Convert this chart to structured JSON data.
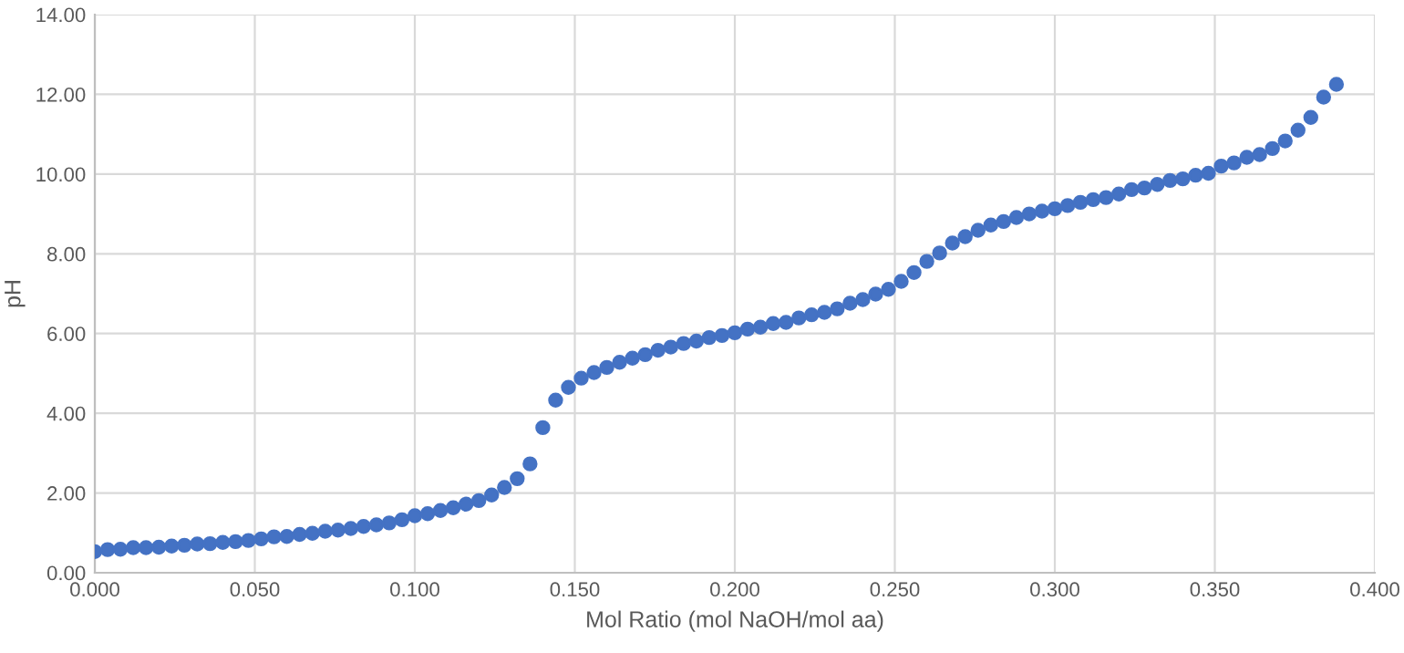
{
  "chart_data": {
    "type": "scatter",
    "xlabel": "Mol Ratio (mol NaOH/mol aa)",
    "ylabel": "pH",
    "x": [
      0,
      0.004,
      0.008,
      0.012,
      0.016,
      0.02,
      0.024,
      0.028,
      0.032,
      0.036,
      0.04,
      0.044,
      0.048,
      0.052,
      0.056,
      0.06,
      0.064,
      0.068,
      0.072,
      0.076,
      0.08,
      0.084,
      0.088,
      0.092,
      0.096,
      0.1,
      0.104,
      0.108,
      0.112,
      0.116,
      0.12,
      0.124,
      0.128,
      0.132,
      0.136,
      0.14,
      0.144,
      0.148,
      0.152,
      0.156,
      0.16,
      0.164,
      0.168,
      0.172,
      0.176,
      0.18,
      0.184,
      0.188,
      0.192,
      0.196,
      0.2,
      0.204,
      0.208,
      0.212,
      0.216,
      0.22,
      0.224,
      0.228,
      0.232,
      0.236,
      0.24,
      0.244,
      0.248,
      0.252,
      0.256,
      0.26,
      0.264,
      0.268,
      0.272,
      0.276,
      0.28,
      0.284,
      0.288,
      0.292,
      0.296,
      0.3,
      0.304,
      0.308,
      0.312,
      0.316,
      0.32,
      0.324,
      0.328,
      0.332,
      0.336,
      0.34,
      0.344,
      0.348,
      0.352,
      0.356,
      0.36,
      0.364,
      0.368,
      0.372,
      0.376,
      0.38,
      0.384,
      0.388
    ],
    "series": [
      {
        "color": "#4472c4",
        "values": [
          0.53,
          0.58,
          0.59,
          0.63,
          0.63,
          0.64,
          0.67,
          0.69,
          0.72,
          0.73,
          0.76,
          0.78,
          0.81,
          0.85,
          0.9,
          0.91,
          0.96,
          0.99,
          1.04,
          1.07,
          1.11,
          1.16,
          1.2,
          1.25,
          1.33,
          1.43,
          1.48,
          1.56,
          1.63,
          1.72,
          1.81,
          1.95,
          2.14,
          2.36,
          2.73,
          3.64,
          4.33,
          4.65,
          4.88,
          5.02,
          5.15,
          5.28,
          5.38,
          5.47,
          5.58,
          5.66,
          5.75,
          5.81,
          5.9,
          5.95,
          6.02,
          6.11,
          6.16,
          6.25,
          6.28,
          6.39,
          6.47,
          6.53,
          6.62,
          6.76,
          6.85,
          6.99,
          7.11,
          7.31,
          7.53,
          7.81,
          8.02,
          8.27,
          8.43,
          8.59,
          8.72,
          8.81,
          8.91,
          9.0,
          9.07,
          9.13,
          9.21,
          9.29,
          9.36,
          9.41,
          9.5,
          9.61,
          9.65,
          9.74,
          9.84,
          9.88,
          9.97,
          10.02,
          10.2,
          10.28,
          10.42,
          10.49,
          10.64,
          10.83,
          11.1,
          11.42,
          11.93,
          12.25
        ]
      }
    ],
    "xlim": [
      0,
      0.4
    ],
    "xticks": [
      {
        "value": 0,
        "label": "0.000"
      },
      {
        "value": 0.05,
        "label": "0.050"
      },
      {
        "value": 0.1,
        "label": "0.100"
      },
      {
        "value": 0.15,
        "label": "0.150"
      },
      {
        "value": 0.2,
        "label": "0.200"
      },
      {
        "value": 0.25,
        "label": "0.250"
      },
      {
        "value": 0.3,
        "label": "0.300"
      },
      {
        "value": 0.35,
        "label": "0.350"
      },
      {
        "value": 0.4,
        "label": "0.400"
      }
    ],
    "ylim": [
      0,
      14
    ],
    "yticks": [
      {
        "value": 0,
        "label": "0.00"
      },
      {
        "value": 2,
        "label": "2.00"
      },
      {
        "value": 4,
        "label": "4.00"
      },
      {
        "value": 6,
        "label": "6.00"
      },
      {
        "value": 8,
        "label": "8.00"
      },
      {
        "value": 10,
        "label": "10.00"
      },
      {
        "value": 12,
        "label": "12.00"
      },
      {
        "value": 14,
        "label": "14.00"
      }
    ],
    "grid": true,
    "marker": "circle"
  }
}
